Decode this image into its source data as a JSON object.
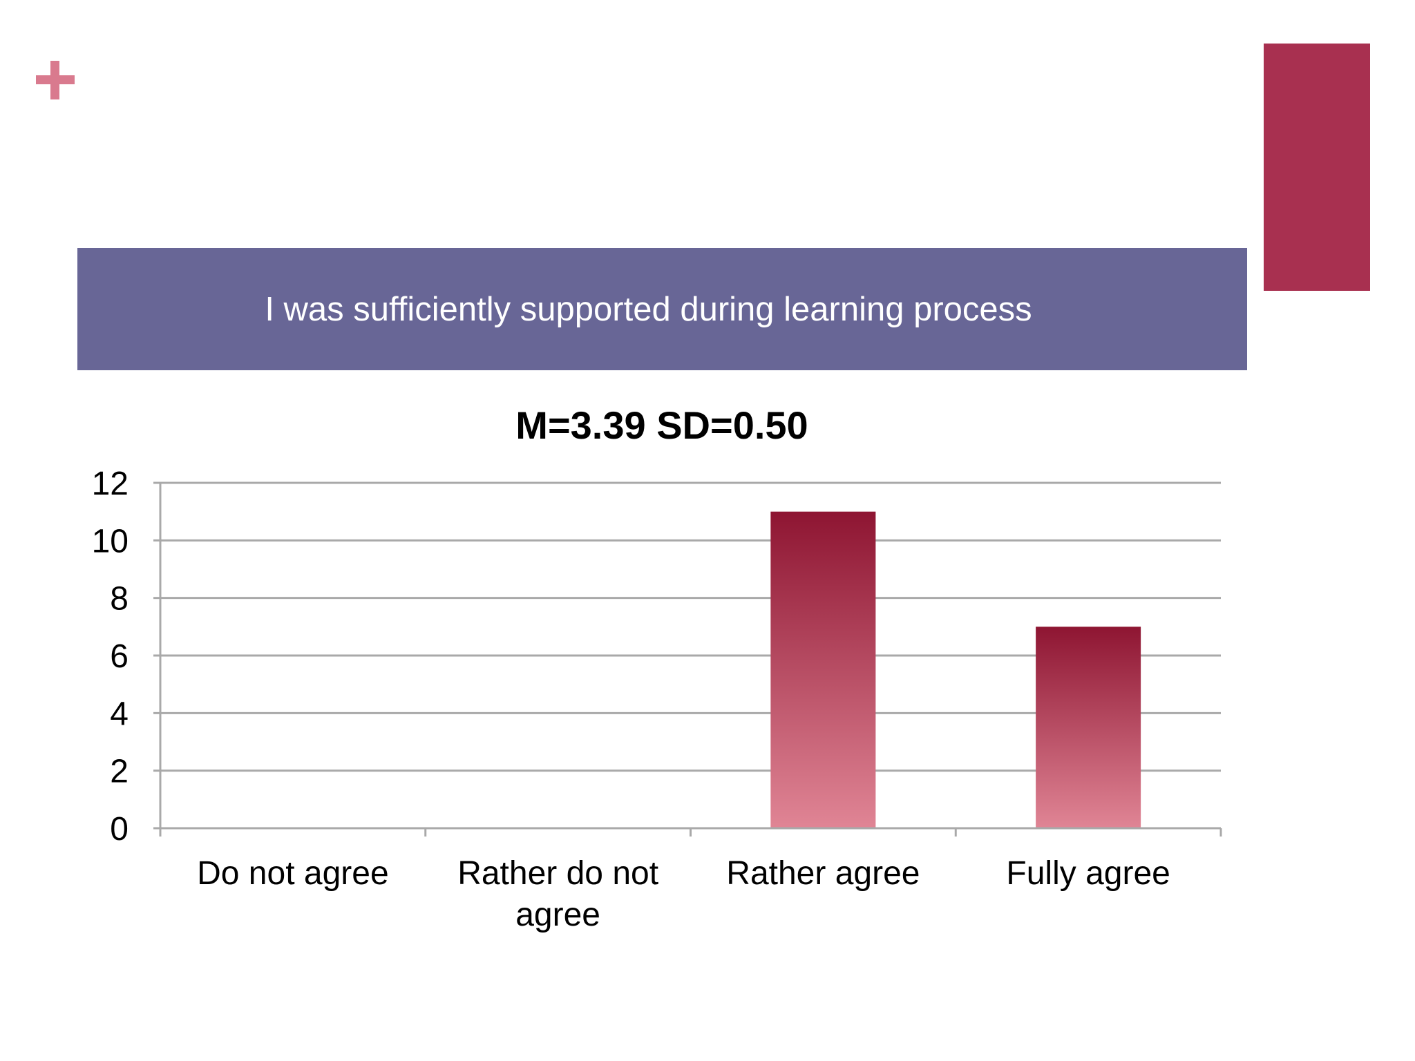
{
  "slide": {
    "plus_icon": "plus-icon",
    "banner_text": "I was sufficiently supported during learning process",
    "colors": {
      "plus": "#d97a8e",
      "accent": "#a83050",
      "banner": "#686696",
      "bar_top": "#8e1532",
      "bar_bottom": "#e08595",
      "grid": "#a9a9a9",
      "text": "#000000"
    }
  },
  "chart_data": {
    "type": "bar",
    "title": "M=3.39 SD=0.50",
    "categories": [
      "Do not agree",
      "Rather do not agree",
      "Rather agree",
      "Fully agree"
    ],
    "category_lines": [
      [
        "Do not agree"
      ],
      [
        "Rather do not",
        "agree"
      ],
      [
        "Rather agree"
      ],
      [
        "Fully agree"
      ]
    ],
    "values": [
      0,
      0,
      11,
      7
    ],
    "ylim": [
      0,
      12
    ],
    "yticks": [
      0,
      2,
      4,
      6,
      8,
      10,
      12
    ],
    "grid": true,
    "legend": "none"
  }
}
